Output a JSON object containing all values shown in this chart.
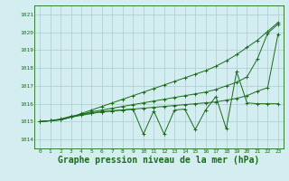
{
  "x": [
    0,
    1,
    2,
    3,
    4,
    5,
    6,
    7,
    8,
    9,
    10,
    11,
    12,
    13,
    14,
    15,
    16,
    17,
    18,
    19,
    20,
    21,
    22,
    23
  ],
  "line1": [
    1015.0,
    1015.05,
    1015.1,
    1015.25,
    1015.45,
    1015.65,
    1015.85,
    1016.05,
    1016.25,
    1016.45,
    1016.65,
    1016.85,
    1017.05,
    1017.25,
    1017.45,
    1017.65,
    1017.85,
    1018.1,
    1018.4,
    1018.75,
    1019.15,
    1019.55,
    1020.05,
    1020.55
  ],
  "line2": [
    1015.0,
    1015.05,
    1015.1,
    1015.25,
    1015.4,
    1015.55,
    1015.65,
    1015.75,
    1015.85,
    1015.95,
    1016.05,
    1016.15,
    1016.25,
    1016.35,
    1016.45,
    1016.55,
    1016.65,
    1016.8,
    1017.0,
    1017.2,
    1017.5,
    1018.5,
    1019.95,
    1020.45
  ],
  "line3": [
    1015.0,
    1015.05,
    1015.15,
    1015.3,
    1015.4,
    1015.5,
    1015.55,
    1015.6,
    1015.65,
    1015.7,
    1015.75,
    1015.8,
    1015.85,
    1015.9,
    1015.95,
    1016.0,
    1016.05,
    1016.1,
    1016.2,
    1016.3,
    1016.45,
    1016.7,
    1016.9,
    1019.9
  ],
  "line4": [
    1015.0,
    1015.05,
    1015.1,
    1015.25,
    1015.35,
    1015.45,
    1015.55,
    1015.6,
    1015.65,
    1015.7,
    1014.3,
    1015.6,
    1014.3,
    1015.65,
    1015.7,
    1014.55,
    1015.65,
    1016.4,
    1014.6,
    1017.8,
    1016.05,
    1016.0,
    1016.0,
    1016.0
  ],
  "ylim": [
    1013.5,
    1021.5
  ],
  "yticks": [
    1014,
    1015,
    1016,
    1017,
    1018,
    1019,
    1020,
    1021
  ],
  "xlim": [
    -0.5,
    23.5
  ],
  "xticks": [
    0,
    1,
    2,
    3,
    4,
    5,
    6,
    7,
    8,
    9,
    10,
    11,
    12,
    13,
    14,
    15,
    16,
    17,
    18,
    19,
    20,
    21,
    22,
    23
  ],
  "line_color": "#1a6b1a",
  "bg_color": "#d4edf0",
  "grid_color": "#aacdd4",
  "xlabel": "Graphe pression niveau de la mer (hPa)",
  "xlabel_fontsize": 7,
  "marker": "+",
  "markersize": 3,
  "lw": 0.7
}
